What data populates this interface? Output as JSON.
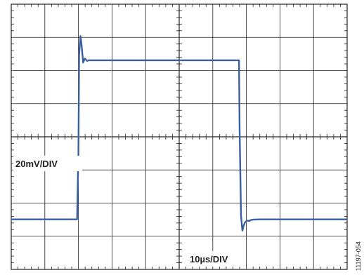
{
  "chart_data": {
    "type": "line",
    "title": "",
    "xlabel": "",
    "ylabel": "",
    "annotations": {
      "vertical_scale": "20mV/DIV",
      "horizontal_scale": "10µs/DIV",
      "figure_id": "11197-054"
    },
    "grid": true,
    "divisions": {
      "x": 10,
      "y": 8
    },
    "xlim": [
      0,
      10
    ],
    "ylim": [
      0,
      8
    ],
    "series": [
      {
        "color": "#3a5fa0",
        "x": [
          0,
          1.0,
          1.96,
          2.0,
          2.02,
          2.06,
          2.09,
          2.14,
          2.19,
          2.26,
          2.3,
          2.36,
          3.0,
          4.0,
          5.0,
          6.0,
          6.78,
          6.8,
          6.84,
          6.88,
          6.92,
          6.96,
          7.02,
          7.08,
          7.14,
          7.2,
          7.4,
          8.0,
          9.0,
          10.0
        ],
        "y": [
          1.51,
          1.51,
          1.51,
          3.5,
          6.48,
          7.04,
          6.82,
          6.24,
          6.36,
          6.29,
          6.31,
          6.31,
          6.31,
          6.31,
          6.31,
          6.31,
          6.31,
          4.2,
          1.62,
          1.17,
          1.33,
          1.42,
          1.47,
          1.46,
          1.49,
          1.5,
          1.51,
          1.51,
          1.51,
          1.51
        ]
      }
    ]
  }
}
